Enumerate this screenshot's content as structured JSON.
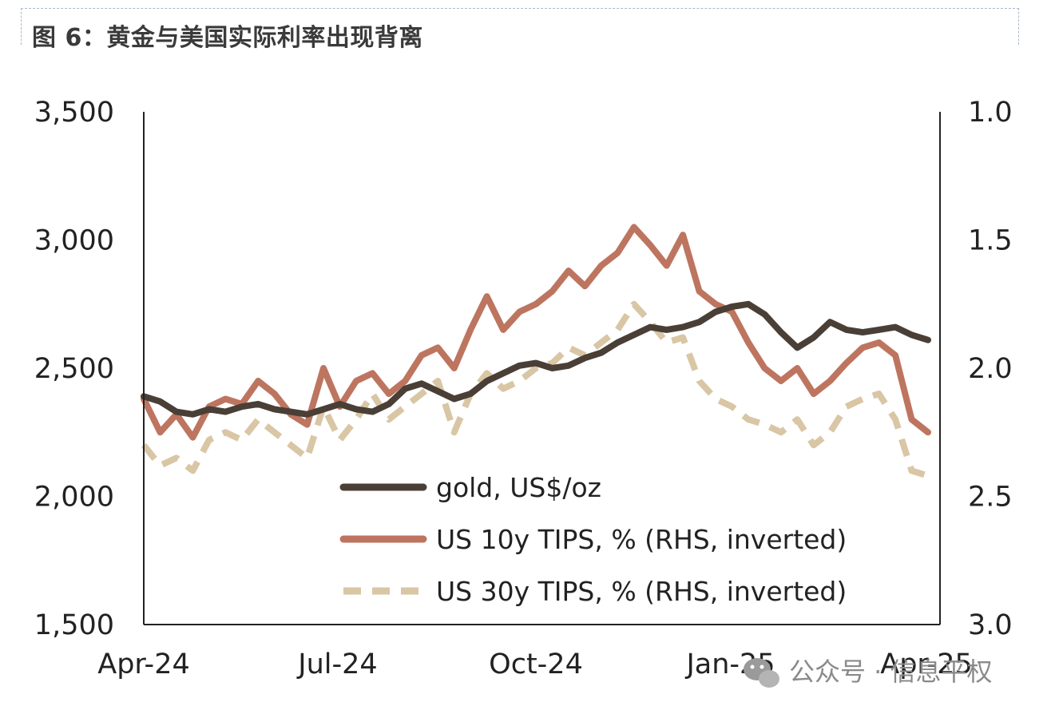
{
  "figure": {
    "title": "图 6：黄金与美国实际利率出现背离"
  },
  "watermark": {
    "icon": "wechat-icon",
    "text": "公众号 · 信息平权"
  },
  "chart_data": {
    "type": "line",
    "title": "",
    "x_tick_labels": [
      "Apr-24",
      "Jul-24",
      "Oct-24",
      "Jan-25",
      "Apr-25"
    ],
    "y_left": {
      "range": [
        1500,
        3500
      ],
      "ticks": [
        1500,
        2000,
        2500,
        3000,
        3500
      ],
      "tick_labels": [
        "1,500",
        "2,000",
        "2,500",
        "3,000",
        "3,500"
      ]
    },
    "y_right": {
      "range": [
        1.0,
        3.0
      ],
      "inverted": true,
      "ticks": [
        1.0,
        1.5,
        2.0,
        2.5,
        3.0
      ],
      "tick_labels": [
        "1.0",
        "1.5",
        "2.0",
        "2.5",
        "3.0"
      ]
    },
    "x_domain": [
      0,
      12
    ],
    "legend_position": "bottom-center",
    "series": [
      {
        "name": "gold, US$/oz",
        "axis": "left",
        "color": "#4a3f36",
        "style": "solid",
        "points": [
          [
            0,
            2390
          ],
          [
            0.25,
            2370
          ],
          [
            0.5,
            2330
          ],
          [
            0.75,
            2320
          ],
          [
            1,
            2340
          ],
          [
            1.25,
            2330
          ],
          [
            1.5,
            2350
          ],
          [
            1.75,
            2360
          ],
          [
            2,
            2340
          ],
          [
            2.25,
            2330
          ],
          [
            2.5,
            2320
          ],
          [
            2.75,
            2340
          ],
          [
            3,
            2360
          ],
          [
            3.25,
            2340
          ],
          [
            3.5,
            2330
          ],
          [
            3.75,
            2360
          ],
          [
            4,
            2420
          ],
          [
            4.25,
            2440
          ],
          [
            4.5,
            2410
          ],
          [
            4.75,
            2380
          ],
          [
            5,
            2400
          ],
          [
            5.25,
            2450
          ],
          [
            5.5,
            2480
          ],
          [
            5.75,
            2510
          ],
          [
            6,
            2520
          ],
          [
            6.25,
            2500
          ],
          [
            6.5,
            2510
          ],
          [
            6.75,
            2540
          ],
          [
            7,
            2560
          ],
          [
            7.25,
            2600
          ],
          [
            7.5,
            2630
          ],
          [
            7.75,
            2660
          ],
          [
            8,
            2650
          ],
          [
            8.25,
            2660
          ],
          [
            8.5,
            2680
          ],
          [
            8.75,
            2720
          ],
          [
            9,
            2740
          ],
          [
            9.25,
            2750
          ],
          [
            9.5,
            2710
          ],
          [
            9.75,
            2640
          ],
          [
            10,
            2580
          ],
          [
            10.25,
            2620
          ],
          [
            10.5,
            2680
          ],
          [
            10.75,
            2650
          ],
          [
            11,
            2640
          ],
          [
            11.25,
            2650
          ],
          [
            11.5,
            2660
          ],
          [
            11.75,
            2630
          ],
          [
            12,
            2610
          ]
        ]
      },
      {
        "name": "US 10y TIPS, % (RHS, inverted)",
        "axis": "right",
        "color": "#bd7560",
        "style": "solid",
        "points": [
          [
            0,
            2.12
          ],
          [
            0.25,
            2.25
          ],
          [
            0.5,
            2.18
          ],
          [
            0.75,
            2.27
          ],
          [
            1,
            2.15
          ],
          [
            1.25,
            2.12
          ],
          [
            1.5,
            2.14
          ],
          [
            1.75,
            2.05
          ],
          [
            2,
            2.1
          ],
          [
            2.25,
            2.18
          ],
          [
            2.5,
            2.22
          ],
          [
            2.75,
            2.0
          ],
          [
            3,
            2.15
          ],
          [
            3.25,
            2.05
          ],
          [
            3.5,
            2.02
          ],
          [
            3.75,
            2.1
          ],
          [
            4,
            2.05
          ],
          [
            4.25,
            1.95
          ],
          [
            4.5,
            1.92
          ],
          [
            4.75,
            2.0
          ],
          [
            5,
            1.85
          ],
          [
            5.25,
            1.72
          ],
          [
            5.5,
            1.85
          ],
          [
            5.75,
            1.78
          ],
          [
            6,
            1.75
          ],
          [
            6.25,
            1.7
          ],
          [
            6.5,
            1.62
          ],
          [
            6.75,
            1.68
          ],
          [
            7,
            1.6
          ],
          [
            7.25,
            1.55
          ],
          [
            7.5,
            1.45
          ],
          [
            7.75,
            1.52
          ],
          [
            8,
            1.6
          ],
          [
            8.25,
            1.48
          ],
          [
            8.5,
            1.7
          ],
          [
            8.75,
            1.75
          ],
          [
            9,
            1.78
          ],
          [
            9.25,
            1.9
          ],
          [
            9.5,
            2.0
          ],
          [
            9.75,
            2.05
          ],
          [
            10,
            2.0
          ],
          [
            10.25,
            2.1
          ],
          [
            10.5,
            2.05
          ],
          [
            10.75,
            1.98
          ],
          [
            11,
            1.92
          ],
          [
            11.25,
            1.9
          ],
          [
            11.5,
            1.95
          ],
          [
            11.75,
            2.2
          ],
          [
            12,
            2.25
          ]
        ]
      },
      {
        "name": "US 30y TIPS, % (RHS, inverted)",
        "axis": "right",
        "color": "#d9c6a5",
        "style": "dashed",
        "points": [
          [
            0,
            2.3
          ],
          [
            0.25,
            2.38
          ],
          [
            0.5,
            2.35
          ],
          [
            0.75,
            2.4
          ],
          [
            1,
            2.28
          ],
          [
            1.25,
            2.25
          ],
          [
            1.5,
            2.28
          ],
          [
            1.75,
            2.2
          ],
          [
            2,
            2.25
          ],
          [
            2.25,
            2.3
          ],
          [
            2.5,
            2.35
          ],
          [
            2.75,
            2.15
          ],
          [
            3,
            2.28
          ],
          [
            3.25,
            2.2
          ],
          [
            3.5,
            2.1
          ],
          [
            3.75,
            2.2
          ],
          [
            4,
            2.15
          ],
          [
            4.25,
            2.1
          ],
          [
            4.5,
            2.05
          ],
          [
            4.75,
            2.25
          ],
          [
            5,
            2.1
          ],
          [
            5.25,
            2.02
          ],
          [
            5.5,
            2.08
          ],
          [
            5.75,
            2.05
          ],
          [
            6,
            2.0
          ],
          [
            6.25,
            1.98
          ],
          [
            6.5,
            1.92
          ],
          [
            6.75,
            1.95
          ],
          [
            7,
            1.9
          ],
          [
            7.25,
            1.85
          ],
          [
            7.5,
            1.75
          ],
          [
            7.75,
            1.82
          ],
          [
            8,
            1.9
          ],
          [
            8.25,
            1.88
          ],
          [
            8.5,
            2.05
          ],
          [
            8.75,
            2.12
          ],
          [
            9,
            2.15
          ],
          [
            9.25,
            2.2
          ],
          [
            9.5,
            2.22
          ],
          [
            9.75,
            2.25
          ],
          [
            10,
            2.2
          ],
          [
            10.25,
            2.3
          ],
          [
            10.5,
            2.25
          ],
          [
            10.75,
            2.15
          ],
          [
            11,
            2.12
          ],
          [
            11.25,
            2.1
          ],
          [
            11.5,
            2.2
          ],
          [
            11.75,
            2.4
          ],
          [
            12,
            2.42
          ]
        ]
      }
    ]
  }
}
